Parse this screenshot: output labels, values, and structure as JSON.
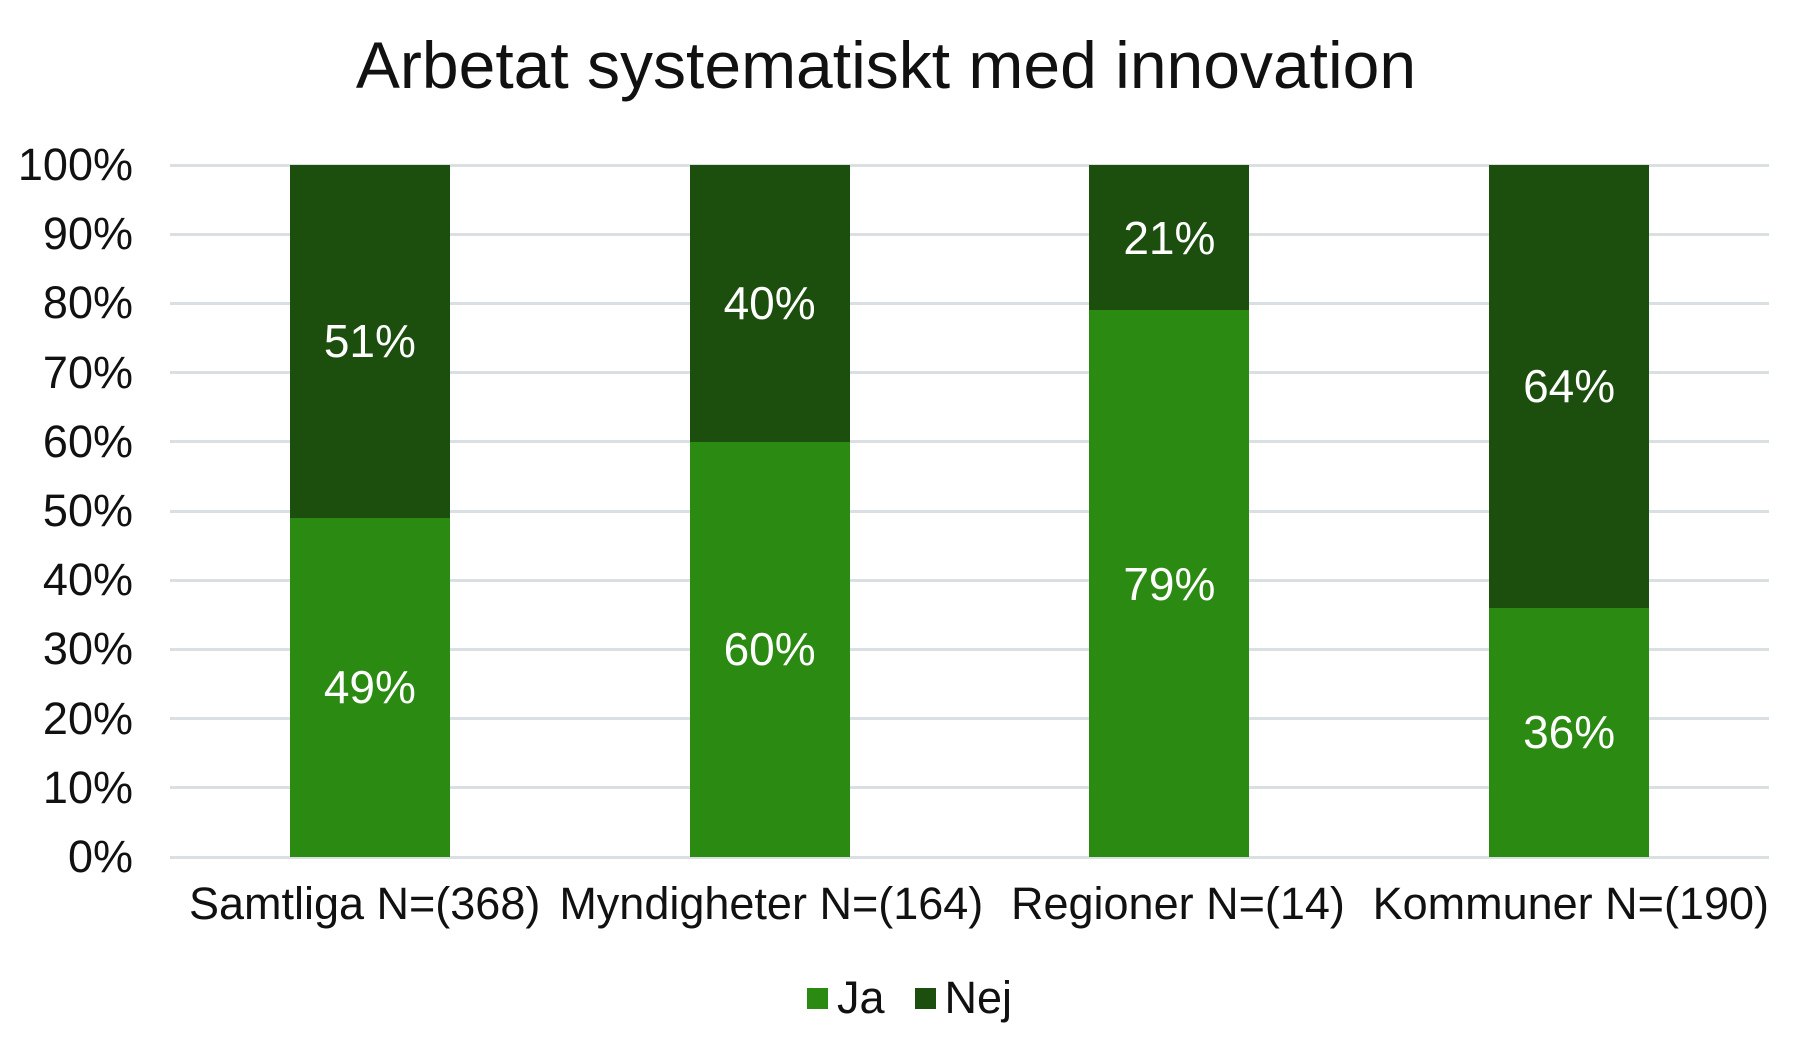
{
  "chart_data": {
    "type": "bar",
    "stacked": true,
    "orientation": "vertical",
    "title": "Arbetat systematiskt med innovation",
    "categories": [
      "Samtliga N=(368)",
      "Myndigheter N=(164)",
      "Regioner N=(14)",
      "Kommuner N=(190)"
    ],
    "series": [
      {
        "name": "Ja",
        "color": "#2b8a12",
        "values": [
          49,
          60,
          79,
          36
        ]
      },
      {
        "name": "Nej",
        "color": "#1c4e0d",
        "values": [
          51,
          40,
          21,
          64
        ]
      }
    ],
    "value_suffix": "%",
    "data_label_color": "#ffffff",
    "ylim": [
      0,
      100
    ],
    "yticks": [
      0,
      10,
      20,
      30,
      40,
      50,
      60,
      70,
      80,
      90,
      100
    ],
    "ytick_suffix": "%",
    "grid": true,
    "gridline_color": "#dadfe4",
    "background_color": "#ffffff",
    "text_color": "#111111",
    "legend_position": "bottom"
  }
}
